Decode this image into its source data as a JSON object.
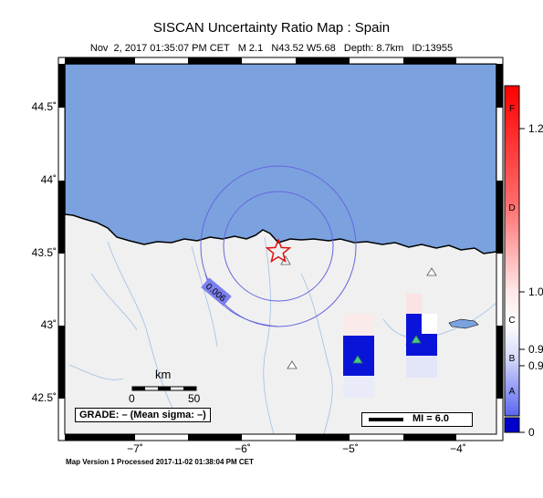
{
  "header": {
    "title": "SISCAN Uncertainty Ratio Map : Spain",
    "subtitle": "Nov  2, 2017 01:35:07 PM CET   M 2.1   N43.52 W5.68   Depth: 8.7km   ID:13955"
  },
  "footer": {
    "text": "Map Version 1 Processed 2017-11-02 01:38:04 PM CET"
  },
  "map": {
    "y_ticks": [
      "44.5˚",
      "44˚",
      "43.5˚",
      "43˚",
      "42.5˚"
    ],
    "x_ticks": [
      "−7˚",
      "−6˚",
      "−5˚",
      "−4˚"
    ],
    "lon_range": [
      -7.7,
      -3.65
    ],
    "lat_range": [
      42.33,
      44.8
    ],
    "contour_label": "0.006",
    "epicenter": {
      "lat": 43.52,
      "lon": -5.68
    },
    "grade_text": "GRADE: – (Mean sigma: –)",
    "scalebar": {
      "label": "km",
      "start": "0",
      "end": "50"
    },
    "mi_legend": "MI = 6.0",
    "colors": {
      "sea": "#7ba2df",
      "land": "#f0f0f0",
      "cell_dark": "#0a14d8",
      "station": "#4bc98a"
    }
  },
  "colorbar": {
    "grades": [
      "F",
      "D",
      "C",
      "B",
      "A"
    ],
    "values": [
      "1.2",
      "1.0",
      "0.9",
      "0.9",
      "0"
    ]
  }
}
